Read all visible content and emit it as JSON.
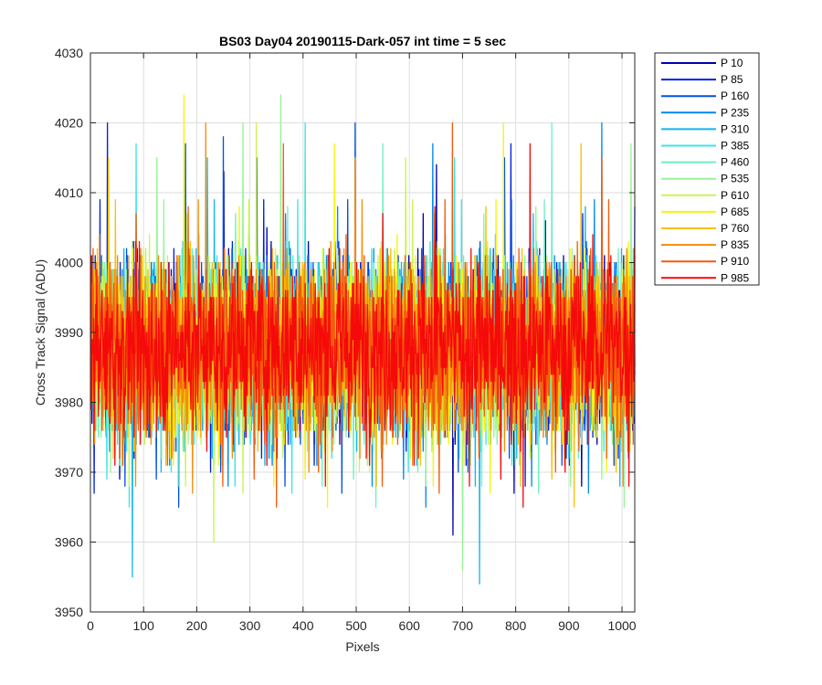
{
  "chart_data": {
    "type": "line",
    "title": "BS03 Day04 20190115-Dark-057 int time = 5 sec",
    "xlabel": "Pixels",
    "ylabel": "Cross Track Signal (ADU)",
    "xlim": [
      0,
      1024
    ],
    "ylim": [
      3950,
      4030
    ],
    "xticks": [
      0,
      100,
      200,
      300,
      400,
      500,
      600,
      700,
      800,
      900,
      1000
    ],
    "yticks": [
      3950,
      3960,
      3970,
      3980,
      3990,
      4000,
      4010,
      4020,
      4030
    ],
    "grid": true,
    "legend_position": "outside-top-right",
    "x_range_points": [
      1,
      1024
    ],
    "approx_mean": 3988,
    "approx_range": [
      3954,
      4024
    ],
    "series": [
      {
        "name": "P 10",
        "color": "#0000AA"
      },
      {
        "name": "P 85",
        "color": "#0020DD"
      },
      {
        "name": "P 160",
        "color": "#0050E8"
      },
      {
        "name": "P 235",
        "color": "#0088EE"
      },
      {
        "name": "P 310",
        "color": "#14B4F0"
      },
      {
        "name": "P 385",
        "color": "#3CE4E8"
      },
      {
        "name": "P 460",
        "color": "#6EF0C0"
      },
      {
        "name": "P 535",
        "color": "#96F596"
      },
      {
        "name": "P 610",
        "color": "#C8F550"
      },
      {
        "name": "P 685",
        "color": "#F5F50A"
      },
      {
        "name": "P 760",
        "color": "#F5C00A"
      },
      {
        "name": "P 835",
        "color": "#F58C0A"
      },
      {
        "name": "P 910",
        "color": "#F55A0A"
      },
      {
        "name": "P 985",
        "color": "#F50A0A"
      }
    ],
    "notable_points": [
      {
        "series": "P 685",
        "x": 176,
        "y": 4024
      },
      {
        "series": "P 535",
        "x": 358,
        "y": 4024
      },
      {
        "series": "P 535",
        "x": 287,
        "y": 4020
      },
      {
        "series": "P 160",
        "x": 250,
        "y": 4018
      },
      {
        "series": "P 85",
        "x": 791,
        "y": 4017
      },
      {
        "series": "P 310",
        "x": 79,
        "y": 3955
      },
      {
        "series": "P 535",
        "x": 700,
        "y": 3956
      },
      {
        "series": "P 310",
        "x": 732,
        "y": 3954
      },
      {
        "series": "P 610",
        "x": 232,
        "y": 3960
      }
    ]
  }
}
